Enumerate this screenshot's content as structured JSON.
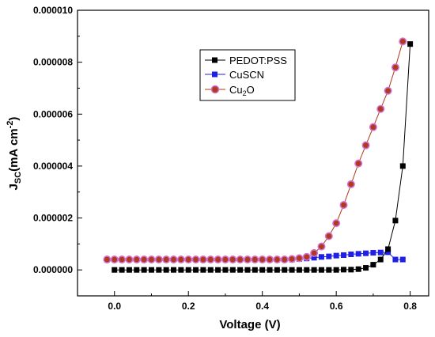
{
  "chart_data": {
    "type": "line",
    "xlabel": "Voltage (V)",
    "ylabel_main": "J",
    "ylabel_sub": "SC",
    "ylabel_unit": "(mA cm",
    "ylabel_sup": "-2",
    "ylabel_close": ")",
    "xlim": [
      -0.1,
      0.85
    ],
    "ylim": [
      -1e-06,
      1e-05
    ],
    "x_ticks": [
      0.0,
      0.2,
      0.4,
      0.6,
      0.8
    ],
    "x_tick_labels": [
      "0.0",
      "0.2",
      "0.4",
      "0.6",
      "0.8"
    ],
    "y_ticks": [
      0,
      2e-06,
      4e-06,
      6e-06,
      8e-06,
      1e-05
    ],
    "y_tick_labels": [
      "0.000000",
      "0.000002",
      "0.000004",
      "0.000006",
      "0.000008",
      "0.000010"
    ],
    "grid": false,
    "legend_position": "top-center",
    "series": [
      {
        "name": "PEDOT:PSS",
        "color": "#000000",
        "marker": "square",
        "x": [
          0.0,
          0.02,
          0.04,
          0.06,
          0.08,
          0.1,
          0.12,
          0.14,
          0.16,
          0.18,
          0.2,
          0.22,
          0.24,
          0.26,
          0.28,
          0.3,
          0.32,
          0.34,
          0.36,
          0.38,
          0.4,
          0.42,
          0.44,
          0.46,
          0.48,
          0.5,
          0.52,
          0.54,
          0.56,
          0.58,
          0.6,
          0.62,
          0.64,
          0.66,
          0.68,
          0.7,
          0.72,
          0.74,
          0.76,
          0.78,
          0.8
        ],
        "y": [
          0,
          0,
          0,
          0,
          0,
          0,
          0,
          0,
          0,
          0,
          0,
          0,
          0,
          0,
          0,
          0,
          0,
          0,
          0,
          0,
          0,
          0,
          0,
          0,
          0,
          0,
          0,
          0,
          0,
          0,
          0,
          1e-08,
          1e-08,
          3e-08,
          8e-08,
          2e-07,
          4e-07,
          8e-07,
          1.9e-06,
          4e-06,
          8.7e-06
        ]
      },
      {
        "name": "CuSCN",
        "color": "#1f1fe6",
        "marker": "square",
        "x": [
          -0.02,
          0.0,
          0.02,
          0.04,
          0.06,
          0.08,
          0.1,
          0.12,
          0.14,
          0.16,
          0.18,
          0.2,
          0.22,
          0.24,
          0.26,
          0.28,
          0.3,
          0.32,
          0.34,
          0.36,
          0.38,
          0.4,
          0.42,
          0.44,
          0.46,
          0.48,
          0.5,
          0.52,
          0.54,
          0.56,
          0.58,
          0.6,
          0.62,
          0.64,
          0.66,
          0.68,
          0.7,
          0.72,
          0.74,
          0.76,
          0.78
        ],
        "y": [
          4e-07,
          4e-07,
          4e-07,
          4e-07,
          4e-07,
          4e-07,
          4e-07,
          4e-07,
          4e-07,
          4e-07,
          4e-07,
          4e-07,
          4e-07,
          4e-07,
          4e-07,
          4e-07,
          4e-07,
          4e-07,
          4e-07,
          4e-07,
          4e-07,
          4e-07,
          4e-07,
          4e-07,
          4e-07,
          4e-07,
          4.2e-07,
          4.4e-07,
          4.7e-07,
          5e-07,
          5.2e-07,
          5.5e-07,
          5.7e-07,
          6e-07,
          6.2e-07,
          6.4e-07,
          6.6e-07,
          6.7e-07,
          6.8e-07,
          4e-07,
          4e-07
        ]
      },
      {
        "name": "Cu2O",
        "legend_main": "Cu",
        "legend_sub": "2",
        "legend_tail": "O",
        "color": "#b03a1e",
        "marker": "circle",
        "x": [
          -0.02,
          0.0,
          0.02,
          0.04,
          0.06,
          0.08,
          0.1,
          0.12,
          0.14,
          0.16,
          0.18,
          0.2,
          0.22,
          0.24,
          0.26,
          0.28,
          0.3,
          0.32,
          0.34,
          0.36,
          0.38,
          0.4,
          0.42,
          0.44,
          0.46,
          0.48,
          0.5,
          0.52,
          0.54,
          0.56,
          0.58,
          0.6,
          0.62,
          0.64,
          0.66,
          0.68,
          0.7,
          0.72,
          0.74,
          0.76,
          0.78
        ],
        "y": [
          4e-07,
          4e-07,
          4e-07,
          4e-07,
          4e-07,
          4e-07,
          4e-07,
          4e-07,
          4e-07,
          4e-07,
          4e-07,
          4e-07,
          4e-07,
          4e-07,
          4e-07,
          4e-07,
          4e-07,
          4e-07,
          4e-07,
          4e-07,
          4e-07,
          4e-07,
          4e-07,
          4e-07,
          4e-07,
          4.2e-07,
          4.5e-07,
          5e-07,
          6.5e-07,
          9e-07,
          1.3e-06,
          1.8e-06,
          2.5e-06,
          3.3e-06,
          4.1e-06,
          4.8e-06,
          5.5e-06,
          6.2e-06,
          6.9e-06,
          7.8e-06,
          8.8e-06
        ]
      }
    ]
  }
}
